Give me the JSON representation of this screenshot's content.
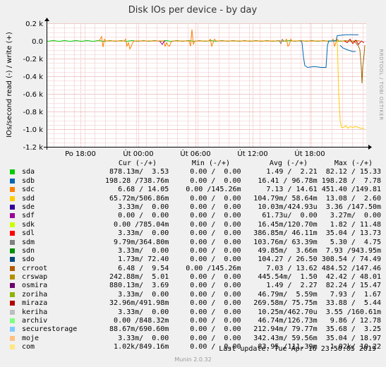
{
  "chart_data": {
    "type": "line",
    "title": "Disk IOs per device - by day",
    "ylabel": "IOs/second read (-) / write (+)",
    "side_label": "RRDTOOL / TOBI OETIKER",
    "ylim": [
      -1.2,
      0.2
    ],
    "y_ticks": [
      "0.2 k",
      "0.0",
      "-0.2 k",
      "-0.4 k",
      "-0.6 k",
      "-0.8 k",
      "-1.0 k",
      "-1.2 k"
    ],
    "x_ticks": [
      "Po 18:00",
      "Út 00:00",
      "Út 06:00",
      "Út 12:00",
      "Út 18:00"
    ],
    "series_colors": {
      "sdb": "#0066b3",
      "sdc": "#ff8000",
      "sdd": "#ffcc00",
      "sdh": "#990099",
      "crswap": "#996600",
      "miraza": "#cc0000",
      "sdm": "#808080"
    }
  },
  "legend": {
    "headers": {
      "cur": "Cur (-/+)",
      "min": "Min (-/+)",
      "avg": "Avg (-/+)",
      "max": "Max (-/+)"
    },
    "rows": [
      {
        "name": "sda",
        "color": "#00cc00",
        "cur": "878.13m/  3.53",
        "min": "0.00 /  0.00",
        "avg": "1.49 /  2.21",
        "max": "82.12 / 15.33"
      },
      {
        "name": "sdb",
        "color": "#0066b3",
        "cur": "198.28 /738.76m",
        "min": "0.00 /  0.00",
        "avg": "16.41 / 96.78m",
        "max": "198.28 /  7.78"
      },
      {
        "name": "sdc",
        "color": "#ff8000",
        "cur": "6.68 / 14.05",
        "min": "0.00 /145.26m",
        "avg": "7.13 / 14.61",
        "max": "451.40 /149.81"
      },
      {
        "name": "sdd",
        "color": "#ffcc00",
        "cur": "65.72m/506.86m",
        "min": "0.00 /  0.00",
        "avg": "104.79m/ 58.64m",
        "max": "13.08 /  2.60"
      },
      {
        "name": "sde",
        "color": "#330099",
        "cur": "3.33m/  0.00",
        "min": "0.00 /  0.00",
        "avg": "10.03m/424.93u",
        "max": "3.36 /147.50m"
      },
      {
        "name": "sdf",
        "color": "#990099",
        "cur": "0.00 /  0.00",
        "min": "0.00 /  0.00",
        "avg": "61.73u/  0.00",
        "max": "3.27m/  0.00"
      },
      {
        "name": "sdk",
        "color": "#ccff00",
        "cur": "0.00 /785.04m",
        "min": "0.00 /  0.00",
        "avg": "16.45m/120.70m",
        "max": "1.82 / 11.48"
      },
      {
        "name": "sdl",
        "color": "#ff0000",
        "cur": "3.33m/  0.00",
        "min": "0.00 /  0.00",
        "avg": "386.85m/ 46.11m",
        "max": "35.04 / 13.73"
      },
      {
        "name": "sdm",
        "color": "#808080",
        "cur": "9.79m/364.80m",
        "min": "0.00 /  0.00",
        "avg": "103.76m/ 63.39m",
        "max": "5.30 /  4.75"
      },
      {
        "name": "sdn",
        "color": "#008f00",
        "cur": "3.33m/  0.00",
        "min": "0.00 /  0.00",
        "avg": "49.85m/  3.66m",
        "max": "7.93 /943.95m"
      },
      {
        "name": "sdo",
        "color": "#00487d",
        "cur": "1.73m/ 72.40",
        "min": "0.00 /  0.00",
        "avg": "104.27 / 26.50",
        "max": "308.54 / 74.49"
      },
      {
        "name": "crroot",
        "color": "#b35a00",
        "cur": "6.48 /  9.54",
        "min": "0.00 /145.26m",
        "avg": "7.03 / 13.62",
        "max": "484.52 /147.46"
      },
      {
        "name": "crswap",
        "color": "#b38f00",
        "cur": "242.88m/  5.01",
        "min": "0.00 /  0.00",
        "avg": "445.54m/  1.50",
        "max": "42.42 / 48.01"
      },
      {
        "name": "osmira",
        "color": "#6b006b",
        "cur": "880.13m/  3.69",
        "min": "0.00 /  0.00",
        "avg": "1.49 /  2.27",
        "max": "82.24 / 15.47"
      },
      {
        "name": "zoriha",
        "color": "#8fb300",
        "cur": "3.33m/  0.00",
        "min": "0.00 /  0.00",
        "avg": "46.79m/  5.59m",
        "max": "7.93 /  1.67"
      },
      {
        "name": "miraza",
        "color": "#b30000",
        "cur": "32.96m/491.98m",
        "min": "0.00 /  0.00",
        "avg": "269.58m/ 75.75m",
        "max": "33.88 /  5.44"
      },
      {
        "name": "keriha",
        "color": "#bebebe",
        "cur": "3.33m/  0.00",
        "min": "0.00 /  0.00",
        "avg": "10.25m/462.70u",
        "max": "3.55 /160.61m"
      },
      {
        "name": "archiv",
        "color": "#80ff80",
        "cur": "0.00 /848.32m",
        "min": "0.00 /  0.00",
        "avg": "46.74m/126.73m",
        "max": "9.86 / 12.78"
      },
      {
        "name": "securestorage",
        "color": "#80c9ff",
        "cur": "88.67m/690.60m",
        "min": "0.00 /  0.00",
        "avg": "212.94m/ 79.77m",
        "max": "35.68 /  3.25"
      },
      {
        "name": "moje",
        "color": "#ffc080",
        "cur": "3.33m/  0.00",
        "min": "0.00 /  0.00",
        "avg": "342.43m/ 59.56m",
        "max": "35.04 / 18.97"
      },
      {
        "name": "com",
        "color": "#ffe680",
        "cur": "1.02k/849.16m",
        "min": "0.00 /  0.00",
        "avg": "83.95 /111.39m",
        "max": "1.02k/ 10.22"
      }
    ]
  },
  "last_update": "Last update: Tue Apr 16 23:50:05 2019",
  "version": "Munin 2.0.32"
}
